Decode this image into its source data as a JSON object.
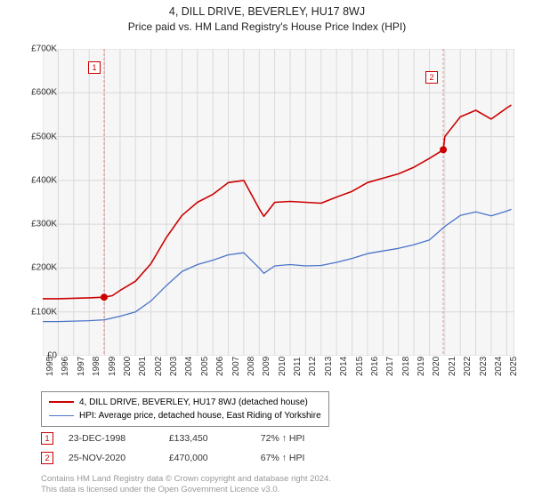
{
  "title": "4, DILL DRIVE, BEVERLEY, HU17 8WJ",
  "subtitle": "Price paid vs. HM Land Registry's House Price Index (HPI)",
  "chart": {
    "type": "line",
    "background_color": "#ffffff",
    "plot_bg_color": "#f6f6f6",
    "grid_color": "#d9d9d9",
    "border_color": "#cccccc",
    "x_min_year": 1995,
    "x_max_year": 2025.5,
    "y_min": 0,
    "y_max": 700000,
    "y_tick_step": 100000,
    "y_ticks": [
      "£0",
      "£100K",
      "£200K",
      "£300K",
      "£400K",
      "£500K",
      "£600K",
      "£700K"
    ],
    "x_ticks": [
      1995,
      1996,
      1997,
      1998,
      1999,
      2000,
      2001,
      2002,
      2003,
      2004,
      2005,
      2006,
      2007,
      2008,
      2009,
      2010,
      2011,
      2012,
      2013,
      2014,
      2015,
      2016,
      2017,
      2018,
      2019,
      2020,
      2021,
      2022,
      2023,
      2024,
      2025
    ],
    "series": [
      {
        "name": "price_paid",
        "label": "4, DILL DRIVE, BEVERLEY, HU17 8WJ (detached house)",
        "color": "#cc0000",
        "line_width": 1.6,
        "years": [
          1995,
          1996,
          1997,
          1998,
          1998.97,
          1999.5,
          2000,
          2001,
          2002,
          2003,
          2004,
          2005,
          2006,
          2007,
          2008,
          2009,
          2009.3,
          2010,
          2011,
          2012,
          2013,
          2014,
          2015,
          2016,
          2017,
          2018,
          2019,
          2020,
          2020.9,
          2021,
          2022,
          2023,
          2024,
          2025,
          2025.3
        ],
        "values": [
          130000,
          130000,
          131000,
          132000,
          133450,
          137000,
          149000,
          170000,
          210000,
          270000,
          320000,
          350000,
          368000,
          395000,
          400000,
          335000,
          318000,
          350000,
          352000,
          350000,
          348000,
          362000,
          375000,
          395000,
          405000,
          415000,
          430000,
          450000,
          470000,
          500000,
          545000,
          560000,
          540000,
          565000,
          572000
        ]
      },
      {
        "name": "hpi",
        "label": "HPI: Average price, detached house, East Riding of Yorkshire",
        "color": "#4a74c9",
        "line_width": 1.3,
        "years": [
          1995,
          1996,
          1997,
          1998,
          1999,
          2000,
          2001,
          2002,
          2003,
          2004,
          2005,
          2006,
          2007,
          2008,
          2009,
          2009.3,
          2010,
          2011,
          2012,
          2013,
          2014,
          2015,
          2016,
          2017,
          2018,
          2019,
          2020,
          2021,
          2022,
          2023,
          2024,
          2025,
          2025.3
        ],
        "values": [
          78000,
          78000,
          79000,
          80000,
          82000,
          90000,
          100000,
          125000,
          160000,
          192000,
          208000,
          218000,
          230000,
          235000,
          200000,
          188000,
          205000,
          208000,
          205000,
          206000,
          213000,
          222000,
          233000,
          239000,
          245000,
          253000,
          264000,
          295000,
          320000,
          328000,
          319000,
          330000,
          334000
        ]
      }
    ],
    "sale_markers": [
      {
        "n": 1,
        "year": 1998.97,
        "value": 133450,
        "line_color": "#e58a8a"
      },
      {
        "n": 2,
        "year": 2020.9,
        "value": 470000,
        "line_color": "#e58a8a"
      }
    ],
    "marker_radius": 4,
    "marker_fill": "#cc0000",
    "label_fontsize": 10
  },
  "legend": {
    "series1": "4, DILL DRIVE, BEVERLEY, HU17 8WJ (detached house)",
    "series2": "HPI: Average price, detached house, East Riding of Yorkshire",
    "color1": "#cc0000",
    "color2": "#4a74c9"
  },
  "sales": [
    {
      "n": "1",
      "date": "23-DEC-1998",
      "price": "£133,450",
      "pct": "72% ↑ HPI"
    },
    {
      "n": "2",
      "date": "25-NOV-2020",
      "price": "£470,000",
      "pct": "67% ↑ HPI"
    }
  ],
  "footer1": "Contains HM Land Registry data © Crown copyright and database right 2024.",
  "footer2": "This data is licensed under the Open Government Licence v3.0."
}
